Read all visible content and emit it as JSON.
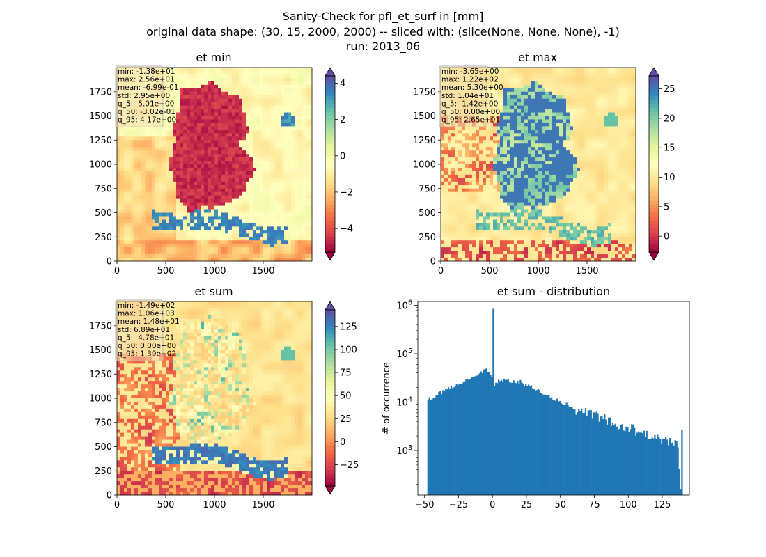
{
  "figure": {
    "title_lines": [
      "Sanity-Check for pfl_et_surf in [mm]",
      "original data shape: (30, 15, 2000, 2000) -- sliced with: (slice(None, None, None), -1)",
      "run: 2013_06"
    ]
  },
  "colors": {
    "bar": "#1f77b4",
    "spectral": [
      "#9e0142",
      "#d53e4f",
      "#f46d43",
      "#fdae61",
      "#fee08b",
      "#ffffbf",
      "#e6f598",
      "#abdda4",
      "#66c2a5",
      "#3288bd",
      "#5e4fa2"
    ]
  },
  "chart_data": [
    {
      "type": "heatmap",
      "title": "et min",
      "colormap": "Spectral",
      "x_ticks": [
        0,
        500,
        1000,
        1500
      ],
      "y_ticks": [
        0,
        250,
        500,
        750,
        1000,
        1250,
        1500,
        1750
      ],
      "xlim": [
        0,
        2000
      ],
      "ylim": [
        0,
        2000
      ],
      "colorbar_range": [
        -5.3,
        4.4
      ],
      "colorbar_ticks": [
        -4,
        -2,
        0,
        2,
        4
      ],
      "stats": [
        "min: -1.38e+01",
        "max: 2.56e+01",
        "mean: -6.99e-01",
        "std: 2.95e+00",
        "q_5: -5.01e+00",
        "q_50: -3.02e-01",
        "q_95: 4.17e+00"
      ]
    },
    {
      "type": "heatmap",
      "title": "et max",
      "colormap": "Spectral",
      "x_ticks": [
        0,
        500,
        1000,
        1500
      ],
      "y_ticks": [
        0,
        250,
        500,
        750,
        1000,
        1250,
        1500,
        1750
      ],
      "xlim": [
        0,
        2000
      ],
      "ylim": [
        0,
        2000
      ],
      "colorbar_range": [
        -2.7,
        27.2
      ],
      "colorbar_ticks": [
        0,
        5,
        10,
        15,
        20,
        25
      ],
      "stats": [
        "min: -3.65e+00",
        "max: 1.22e+02",
        "mean: 5.30e+00",
        "std: 1.04e+01",
        "q_5: -1.42e+00",
        "q_50: 0.00e+00",
        "q_95: 2.65e+01"
      ]
    },
    {
      "type": "heatmap",
      "title": "et sum",
      "colormap": "Spectral",
      "x_ticks": [
        0,
        500,
        1000,
        1500
      ],
      "y_ticks": [
        0,
        250,
        500,
        750,
        1000,
        1250,
        1500,
        1750
      ],
      "xlim": [
        0,
        2000
      ],
      "ylim": [
        0,
        2000
      ],
      "colorbar_range": [
        -48,
        143
      ],
      "colorbar_ticks": [
        -25,
        0,
        25,
        50,
        75,
        100,
        125
      ],
      "stats": [
        "min: -1.49e+02",
        "max: 1.06e+03",
        "mean: 1.48e+01",
        "std: 6.89e+01",
        "q_5: -4.78e+01",
        "q_50: 0.00e+00",
        "q_95: 1.39e+02"
      ]
    },
    {
      "type": "bar",
      "title": "et sum - distribution",
      "ylabel": "# of occurrence",
      "yscale": "log",
      "xlim": [
        -55,
        145
      ],
      "ylim": [
        120,
        1200000
      ],
      "x_ticks": [
        -50,
        -25,
        0,
        25,
        50,
        75,
        100,
        125
      ],
      "y_ticks": [
        1000,
        10000,
        100000,
        1000000
      ],
      "y_tick_labels": [
        "10^3",
        "10^4",
        "10^5",
        "10^6"
      ],
      "bin_range": [
        -48,
        139
      ],
      "bin_width": 1,
      "envelope": [
        {
          "x": -48,
          "y": 11000
        },
        {
          "x": -40,
          "y": 15000
        },
        {
          "x": -30,
          "y": 21000
        },
        {
          "x": -20,
          "y": 28000
        },
        {
          "x": -15,
          "y": 32000
        },
        {
          "x": -10,
          "y": 40000
        },
        {
          "x": -6,
          "y": 48000
        },
        {
          "x": -3,
          "y": 40000
        },
        {
          "x": -1,
          "y": 36000
        },
        {
          "x": 0,
          "y": 850000
        },
        {
          "x": 1,
          "y": 20000
        },
        {
          "x": 3,
          "y": 27000
        },
        {
          "x": 10,
          "y": 28000
        },
        {
          "x": 20,
          "y": 26000
        },
        {
          "x": 30,
          "y": 19000
        },
        {
          "x": 40,
          "y": 14000
        },
        {
          "x": 50,
          "y": 10000
        },
        {
          "x": 60,
          "y": 7500
        },
        {
          "x": 70,
          "y": 6000
        },
        {
          "x": 80,
          "y": 5000
        },
        {
          "x": 90,
          "y": 3500
        },
        {
          "x": 100,
          "y": 3000
        },
        {
          "x": 110,
          "y": 2300
        },
        {
          "x": 120,
          "y": 1800
        },
        {
          "x": 130,
          "y": 1500
        },
        {
          "x": 136,
          "y": 1300
        },
        {
          "x": 138,
          "y": 180
        },
        {
          "x": 139,
          "y": 2800
        }
      ]
    }
  ]
}
